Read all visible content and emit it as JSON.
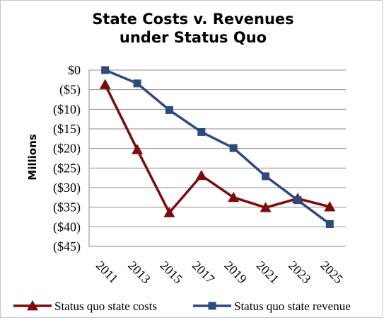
{
  "chart_data": {
    "type": "line",
    "title_lines": [
      "State Costs v. Revenues",
      "under Status Quo"
    ],
    "ylabel": "Millions",
    "xlabel": "",
    "x": [
      "2011",
      "2013",
      "2015",
      "2017",
      "2019",
      "2021",
      "2023",
      "2025"
    ],
    "ylim": [
      -45,
      0
    ],
    "ytick_values": [
      0,
      -5,
      -10,
      -15,
      -20,
      -25,
      -30,
      -35,
      -40,
      -45
    ],
    "ytick_labels": [
      "$0",
      "($5)",
      "($10)",
      "($15)",
      "($20)",
      "($25)",
      "($30)",
      "($35)",
      "($40)",
      "($45)"
    ],
    "grid": true,
    "legend_position": "bottom",
    "series": [
      {
        "name": "Status quo state costs",
        "color": "#7b0c0c",
        "marker": "triangle",
        "values": [
          -3.7,
          -20.3,
          -36.4,
          -26.9,
          -32.5,
          -35.1,
          -32.8,
          -34.9
        ]
      },
      {
        "name": "Status quo state revenue",
        "color": "#2e4a80",
        "marker": "square",
        "values": [
          0,
          -3.4,
          -10.2,
          -15.8,
          -19.9,
          -27.1,
          -33.2,
          -39.3
        ]
      }
    ]
  }
}
